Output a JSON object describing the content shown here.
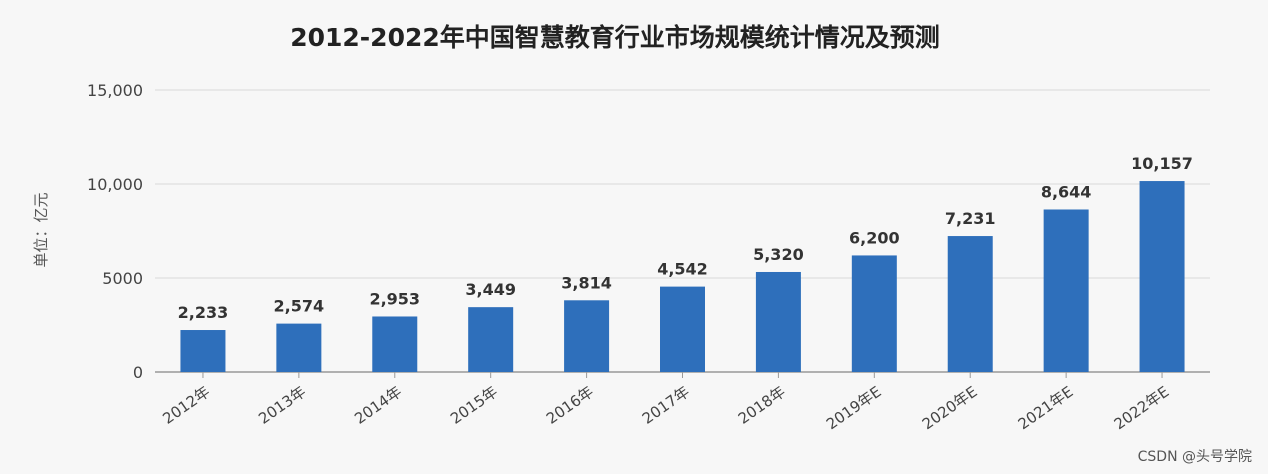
{
  "chart_data": {
    "type": "bar",
    "title": "2012-2022年中国智慧教育行业市场规模统计情况及预测",
    "ylabel": "单位：亿元",
    "xlabel": "",
    "categories": [
      "2012年",
      "2013年",
      "2014年",
      "2015年",
      "2016年",
      "2017年",
      "2018年",
      "2019年E",
      "2020年E",
      "2021年E",
      "2022年E"
    ],
    "values": [
      2233,
      2574,
      2953,
      3449,
      3814,
      4542,
      5320,
      6200,
      7231,
      8644,
      10157
    ],
    "value_labels": [
      "2,233",
      "2,574",
      "2,953",
      "3,449",
      "3,814",
      "4,542",
      "5,320",
      "6,200",
      "7,231",
      "8,644",
      "10,157"
    ],
    "ylim": [
      0,
      15000
    ],
    "yticks": [
      0,
      5000,
      10000,
      15000
    ],
    "ytick_labels": [
      "0",
      "5000",
      "10,000",
      "15,000"
    ],
    "grid": true,
    "bar_color": "#2e6fbb"
  },
  "watermark": "CSDN @头号学院"
}
